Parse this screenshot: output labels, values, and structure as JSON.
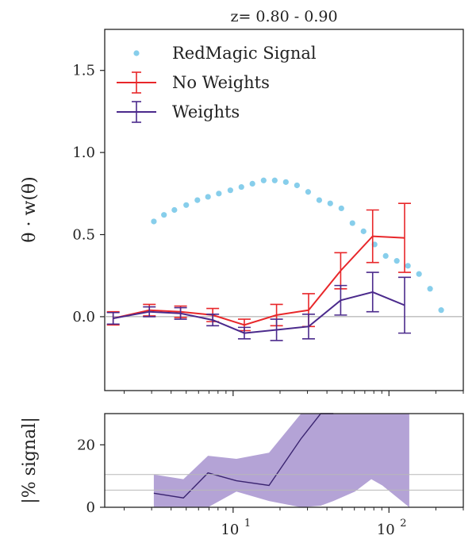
{
  "chart_data": [
    {
      "type": "line",
      "title": "z= 0.80 - 0.90",
      "xlabel": "",
      "ylabel": "θ · w(θ)",
      "xscale": "log",
      "xlim": [
        1.5,
        300
      ],
      "ylim": [
        -0.45,
        1.75
      ],
      "yticks": [
        "0.0",
        "0.5",
        "1.0",
        "1.5"
      ],
      "yticks_values": [
        0.0,
        0.5,
        1.0,
        1.5
      ],
      "legend_position": "top-left",
      "reference_line": 0.0,
      "series": [
        {
          "name": "RedMagic Signal",
          "style": "points",
          "color": "#87ceeb",
          "x": [
            3.1,
            3.6,
            4.2,
            5.0,
            5.9,
            6.9,
            8.1,
            9.6,
            11.3,
            13.3,
            15.7,
            18.5,
            21.8,
            25.7,
            30.3,
            35.7,
            42.0,
            49.5,
            58.3,
            68.7,
            80.9,
            95.3,
            112.3,
            132.3,
            155.9,
            183.6,
            216.3
          ],
          "y": [
            0.58,
            0.62,
            0.65,
            0.68,
            0.71,
            0.73,
            0.75,
            0.77,
            0.79,
            0.81,
            0.83,
            0.83,
            0.82,
            0.8,
            0.76,
            0.71,
            0.69,
            0.66,
            0.57,
            0.52,
            0.44,
            0.37,
            0.34,
            0.31,
            0.26,
            0.17,
            0.04
          ]
        },
        {
          "name": "No Weights",
          "style": "errorbar",
          "color": "#e8272a",
          "x": [
            1.7,
            2.9,
            4.6,
            7.4,
            11.8,
            19.0,
            30.5,
            49.0,
            78.6,
            126.0
          ],
          "y": [
            -0.01,
            0.04,
            0.03,
            0.01,
            -0.05,
            0.01,
            0.04,
            0.28,
            0.49,
            0.48
          ],
          "err": [
            0.04,
            0.035,
            0.035,
            0.04,
            0.035,
            0.065,
            0.1,
            0.11,
            0.16,
            0.21
          ]
        },
        {
          "name": "Weights",
          "style": "errorbar",
          "color": "#4b2a8c",
          "x": [
            1.7,
            2.9,
            4.6,
            7.4,
            11.8,
            19.0,
            30.5,
            49.0,
            78.6,
            126.0
          ],
          "y": [
            -0.01,
            0.03,
            0.02,
            -0.02,
            -0.1,
            -0.08,
            -0.06,
            0.1,
            0.15,
            0.07
          ],
          "err": [
            0.035,
            0.03,
            0.035,
            0.035,
            0.035,
            0.065,
            0.075,
            0.09,
            0.12,
            0.17
          ]
        }
      ]
    },
    {
      "type": "area",
      "title": "",
      "xlabel": "",
      "ylabel": "|% signal|",
      "xscale": "log",
      "xlim": [
        1.5,
        300
      ],
      "ylim": [
        0,
        30
      ],
      "yticks": [
        "0",
        "20"
      ],
      "yticks_values": [
        0,
        20
      ],
      "xticks": [
        "10",
        "10"
      ],
      "xticks_exponents": [
        "1",
        "2"
      ],
      "xticks_values": [
        10,
        100
      ],
      "reference_lines": [
        5.5,
        10.5
      ],
      "series": [
        {
          "name": "",
          "style": "band",
          "color": "#9b84c8",
          "x": [
            3.1,
            4.8,
            6.9,
            10.5,
            17.0,
            27.3,
            36.5,
            44.0,
            60.5,
            77.0,
            90.7,
            135.0
          ],
          "lower": [
            0.0,
            0.0,
            0.0,
            5.0,
            2.0,
            0.0,
            0.5,
            2.0,
            5.0,
            9.0,
            7.0,
            0.0
          ],
          "upper": [
            10.5,
            9.0,
            16.5,
            15.5,
            17.5,
            30.0,
            30.0,
            30.0,
            30.0,
            30.0,
            30.0,
            30.0
          ]
        },
        {
          "name": "",
          "style": "line",
          "color": "#3a2470",
          "x": [
            3.1,
            4.8,
            6.9,
            10.5,
            17.0,
            27.3,
            36.5,
            44.0
          ],
          "y": [
            4.5,
            3.0,
            11.0,
            8.5,
            7.0,
            22.0,
            30.0,
            30.0
          ]
        }
      ]
    }
  ]
}
